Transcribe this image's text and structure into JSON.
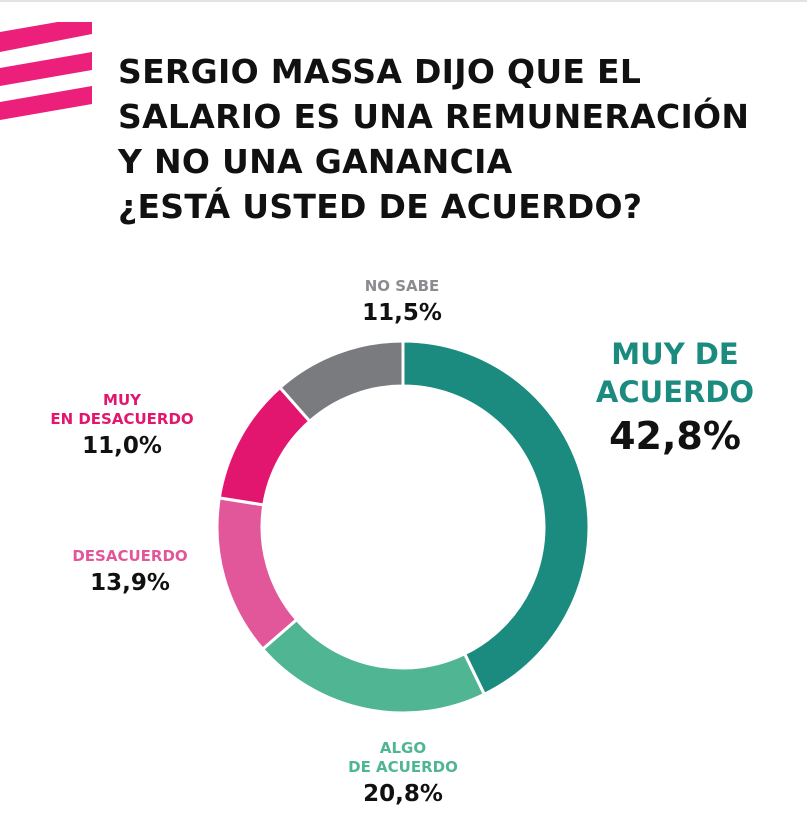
{
  "title_lines": [
    "SERGIO MASSA DIJO QUE EL",
    "SALARIO ES UNA REMUNERACIÓN",
    "Y NO UNA GANANCIA",
    "¿ESTÁ USTED DE ACUERDO?"
  ],
  "colors": {
    "brand": "#ec1f7b",
    "muy_de_acuerdo": "#1a8b7e",
    "algo_de_acuerdo": "#4fb592",
    "desacuerdo": "#e2579a",
    "muy_en_desacuerdo": "#e3166f",
    "no_sabe": "#797b7e"
  },
  "chart_data": {
    "type": "pie",
    "donut": true,
    "title": "SERGIO MASSA DIJO QUE EL SALARIO ES UNA REMUNERACIÓN Y NO UNA GANANCIA ¿ESTÁ USTED DE ACUERDO?",
    "categories": [
      "MUY DE ACUERDO",
      "ALGO DE ACUERDO",
      "DESACUERDO",
      "MUY EN DESACUERDO",
      "NO SABE"
    ],
    "values": [
      42.8,
      20.8,
      13.9,
      11.0,
      11.5
    ],
    "labels": [
      "42,8%",
      "20,8%",
      "13,9%",
      "11,0%",
      "11,5%"
    ],
    "colors": [
      "#1a8b7e",
      "#4fb592",
      "#e2579a",
      "#e3166f",
      "#797b7e"
    ],
    "start": "top",
    "direction": "clockwise"
  },
  "slices": {
    "muy_de_acuerdo": {
      "name_lines": [
        "MUY DE",
        "ACUERDO"
      ],
      "pct": "42,8%"
    },
    "algo_de_acuerdo": {
      "name_lines": [
        "ALGO",
        "DE ACUERDO"
      ],
      "pct": "20,8%"
    },
    "desacuerdo": {
      "name_lines": [
        "DESACUERDO"
      ],
      "pct": "13,9%"
    },
    "muy_en_desacuerdo": {
      "name_lines": [
        "MUY",
        "EN DESACUERDO"
      ],
      "pct": "11,0%"
    },
    "no_sabe": {
      "name_lines": [
        "NO SABE"
      ],
      "pct": "11,5%"
    }
  }
}
